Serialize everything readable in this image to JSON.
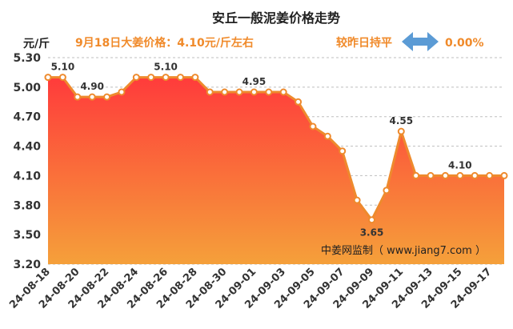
{
  "header": {
    "title": "安丘一般泥姜价格走势",
    "subtitle": "9月18日大姜价格：4.10元/斤左右",
    "change_label": "较昨日持平",
    "change_value": "0.00%",
    "unit": "元/斤",
    "watermark": "中姜网监制（ www.jiang7.com ）"
  },
  "colors": {
    "line": "#ee8a2d",
    "area_top": "#ff3b3b",
    "area_bottom": "#f5a03a",
    "accent_text": "#f08a2a",
    "arrow": "#5b9bd5"
  },
  "chart_data": {
    "type": "area",
    "x": [
      "24-08-18",
      "24-08-19",
      "24-08-20",
      "24-08-21",
      "24-08-22",
      "24-08-23",
      "24-08-24",
      "24-08-25",
      "24-08-26",
      "24-08-27",
      "24-08-28",
      "24-08-29",
      "24-08-30",
      "24-08-31",
      "24-09-01",
      "24-09-02",
      "24-09-03",
      "24-09-04",
      "24-09-05",
      "24-09-06",
      "24-09-07",
      "24-09-08",
      "24-09-09",
      "24-09-10",
      "24-09-11",
      "24-09-12",
      "24-09-13",
      "24-09-14",
      "24-09-15",
      "24-09-16",
      "24-09-17",
      "24-09-18"
    ],
    "y": [
      5.1,
      5.1,
      4.9,
      4.9,
      4.9,
      4.95,
      5.1,
      5.1,
      5.1,
      5.1,
      5.1,
      4.95,
      4.95,
      4.95,
      4.95,
      4.95,
      4.95,
      4.85,
      4.6,
      4.5,
      4.35,
      3.85,
      3.65,
      3.95,
      4.55,
      4.1,
      4.1,
      4.1,
      4.1,
      4.1,
      4.1,
      4.1
    ],
    "xtick_labels": [
      "24-08-18",
      "24-08-20",
      "24-08-22",
      "24-08-24",
      "24-08-26",
      "24-08-28",
      "24-08-30",
      "24-09-01",
      "24-09-03",
      "24-09-05",
      "24-09-07",
      "24-09-09",
      "24-09-11",
      "24-09-13",
      "24-09-15",
      "24-09-17"
    ],
    "yticks": [
      "3.20",
      "3.50",
      "3.80",
      "4.10",
      "4.40",
      "4.70",
      "5.00",
      "5.30"
    ],
    "ylim": [
      3.2,
      5.3
    ],
    "grid": true,
    "data_labels": [
      {
        "index": 1,
        "text": "5.10"
      },
      {
        "index": 3,
        "text": "4.90"
      },
      {
        "index": 8,
        "text": "5.10"
      },
      {
        "index": 14,
        "text": "4.95"
      },
      {
        "index": 22,
        "text": "3.65"
      },
      {
        "index": 24,
        "text": "4.55"
      },
      {
        "index": 28,
        "text": "4.10"
      }
    ]
  }
}
